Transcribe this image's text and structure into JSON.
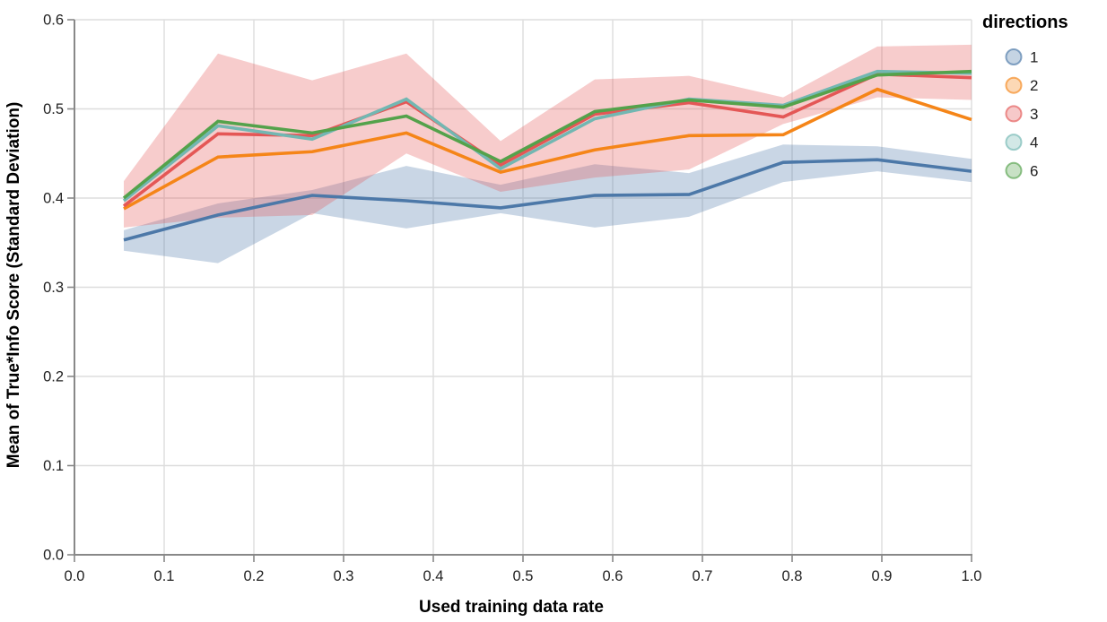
{
  "chart_data": {
    "type": "line",
    "title": "",
    "xlabel": "Used training data rate",
    "ylabel": "Mean of True*Info Score (Standard Deviation)",
    "xlim": [
      0.0,
      1.0
    ],
    "ylim": [
      0.0,
      0.6
    ],
    "x_ticks": [
      0.0,
      0.1,
      0.2,
      0.3,
      0.4,
      0.5,
      0.6,
      0.7,
      0.8,
      0.9,
      1.0
    ],
    "y_ticks": [
      0.0,
      0.1,
      0.2,
      0.3,
      0.4,
      0.5,
      0.6
    ],
    "grid": true,
    "x": [
      0.055,
      0.16,
      0.265,
      0.37,
      0.475,
      0.58,
      0.685,
      0.79,
      0.895,
      1.0
    ],
    "series": [
      {
        "name": "1",
        "color": "#4c78a8",
        "values": [
          0.353,
          0.381,
          0.403,
          0.397,
          0.389,
          0.403,
          0.404,
          0.44,
          0.443,
          0.43
        ],
        "band_upper": [
          0.364,
          0.394,
          0.409,
          0.436,
          0.415,
          0.438,
          0.428,
          0.46,
          0.458,
          0.444
        ],
        "band_lower": [
          0.341,
          0.327,
          0.383,
          0.366,
          0.383,
          0.367,
          0.379,
          0.418,
          0.43,
          0.418
        ]
      },
      {
        "name": "2",
        "color": "#f58518",
        "values": [
          0.388,
          0.446,
          0.452,
          0.473,
          0.429,
          0.454,
          0.47,
          0.471,
          0.522,
          0.488
        ]
      },
      {
        "name": "3",
        "color": "#e45756",
        "values": [
          0.391,
          0.472,
          0.47,
          0.508,
          0.437,
          0.494,
          0.507,
          0.491,
          0.539,
          0.535
        ],
        "band_upper": [
          0.419,
          0.562,
          0.532,
          0.562,
          0.464,
          0.533,
          0.537,
          0.513,
          0.57,
          0.572
        ],
        "band_lower": [
          0.367,
          0.378,
          0.381,
          0.45,
          0.407,
          0.423,
          0.432,
          0.483,
          0.513,
          0.51
        ]
      },
      {
        "name": "4",
        "color": "#72b7b2",
        "values": [
          0.397,
          0.481,
          0.466,
          0.511,
          0.433,
          0.489,
          0.511,
          0.504,
          0.542,
          0.54
        ]
      },
      {
        "name": "6",
        "color": "#54a24b",
        "values": [
          0.4,
          0.486,
          0.473,
          0.492,
          0.441,
          0.497,
          0.51,
          0.502,
          0.538,
          0.542
        ]
      }
    ],
    "band_opacity": 0.3,
    "legend": {
      "title": "directions",
      "position": "top-right",
      "entries": [
        "1",
        "2",
        "3",
        "4",
        "6"
      ]
    }
  },
  "styles": {
    "axis_color": "#888888",
    "grid_color": "#dddddd",
    "label_color": "#1f1f1f",
    "title_color": "#000000",
    "background": "#ffffff"
  }
}
